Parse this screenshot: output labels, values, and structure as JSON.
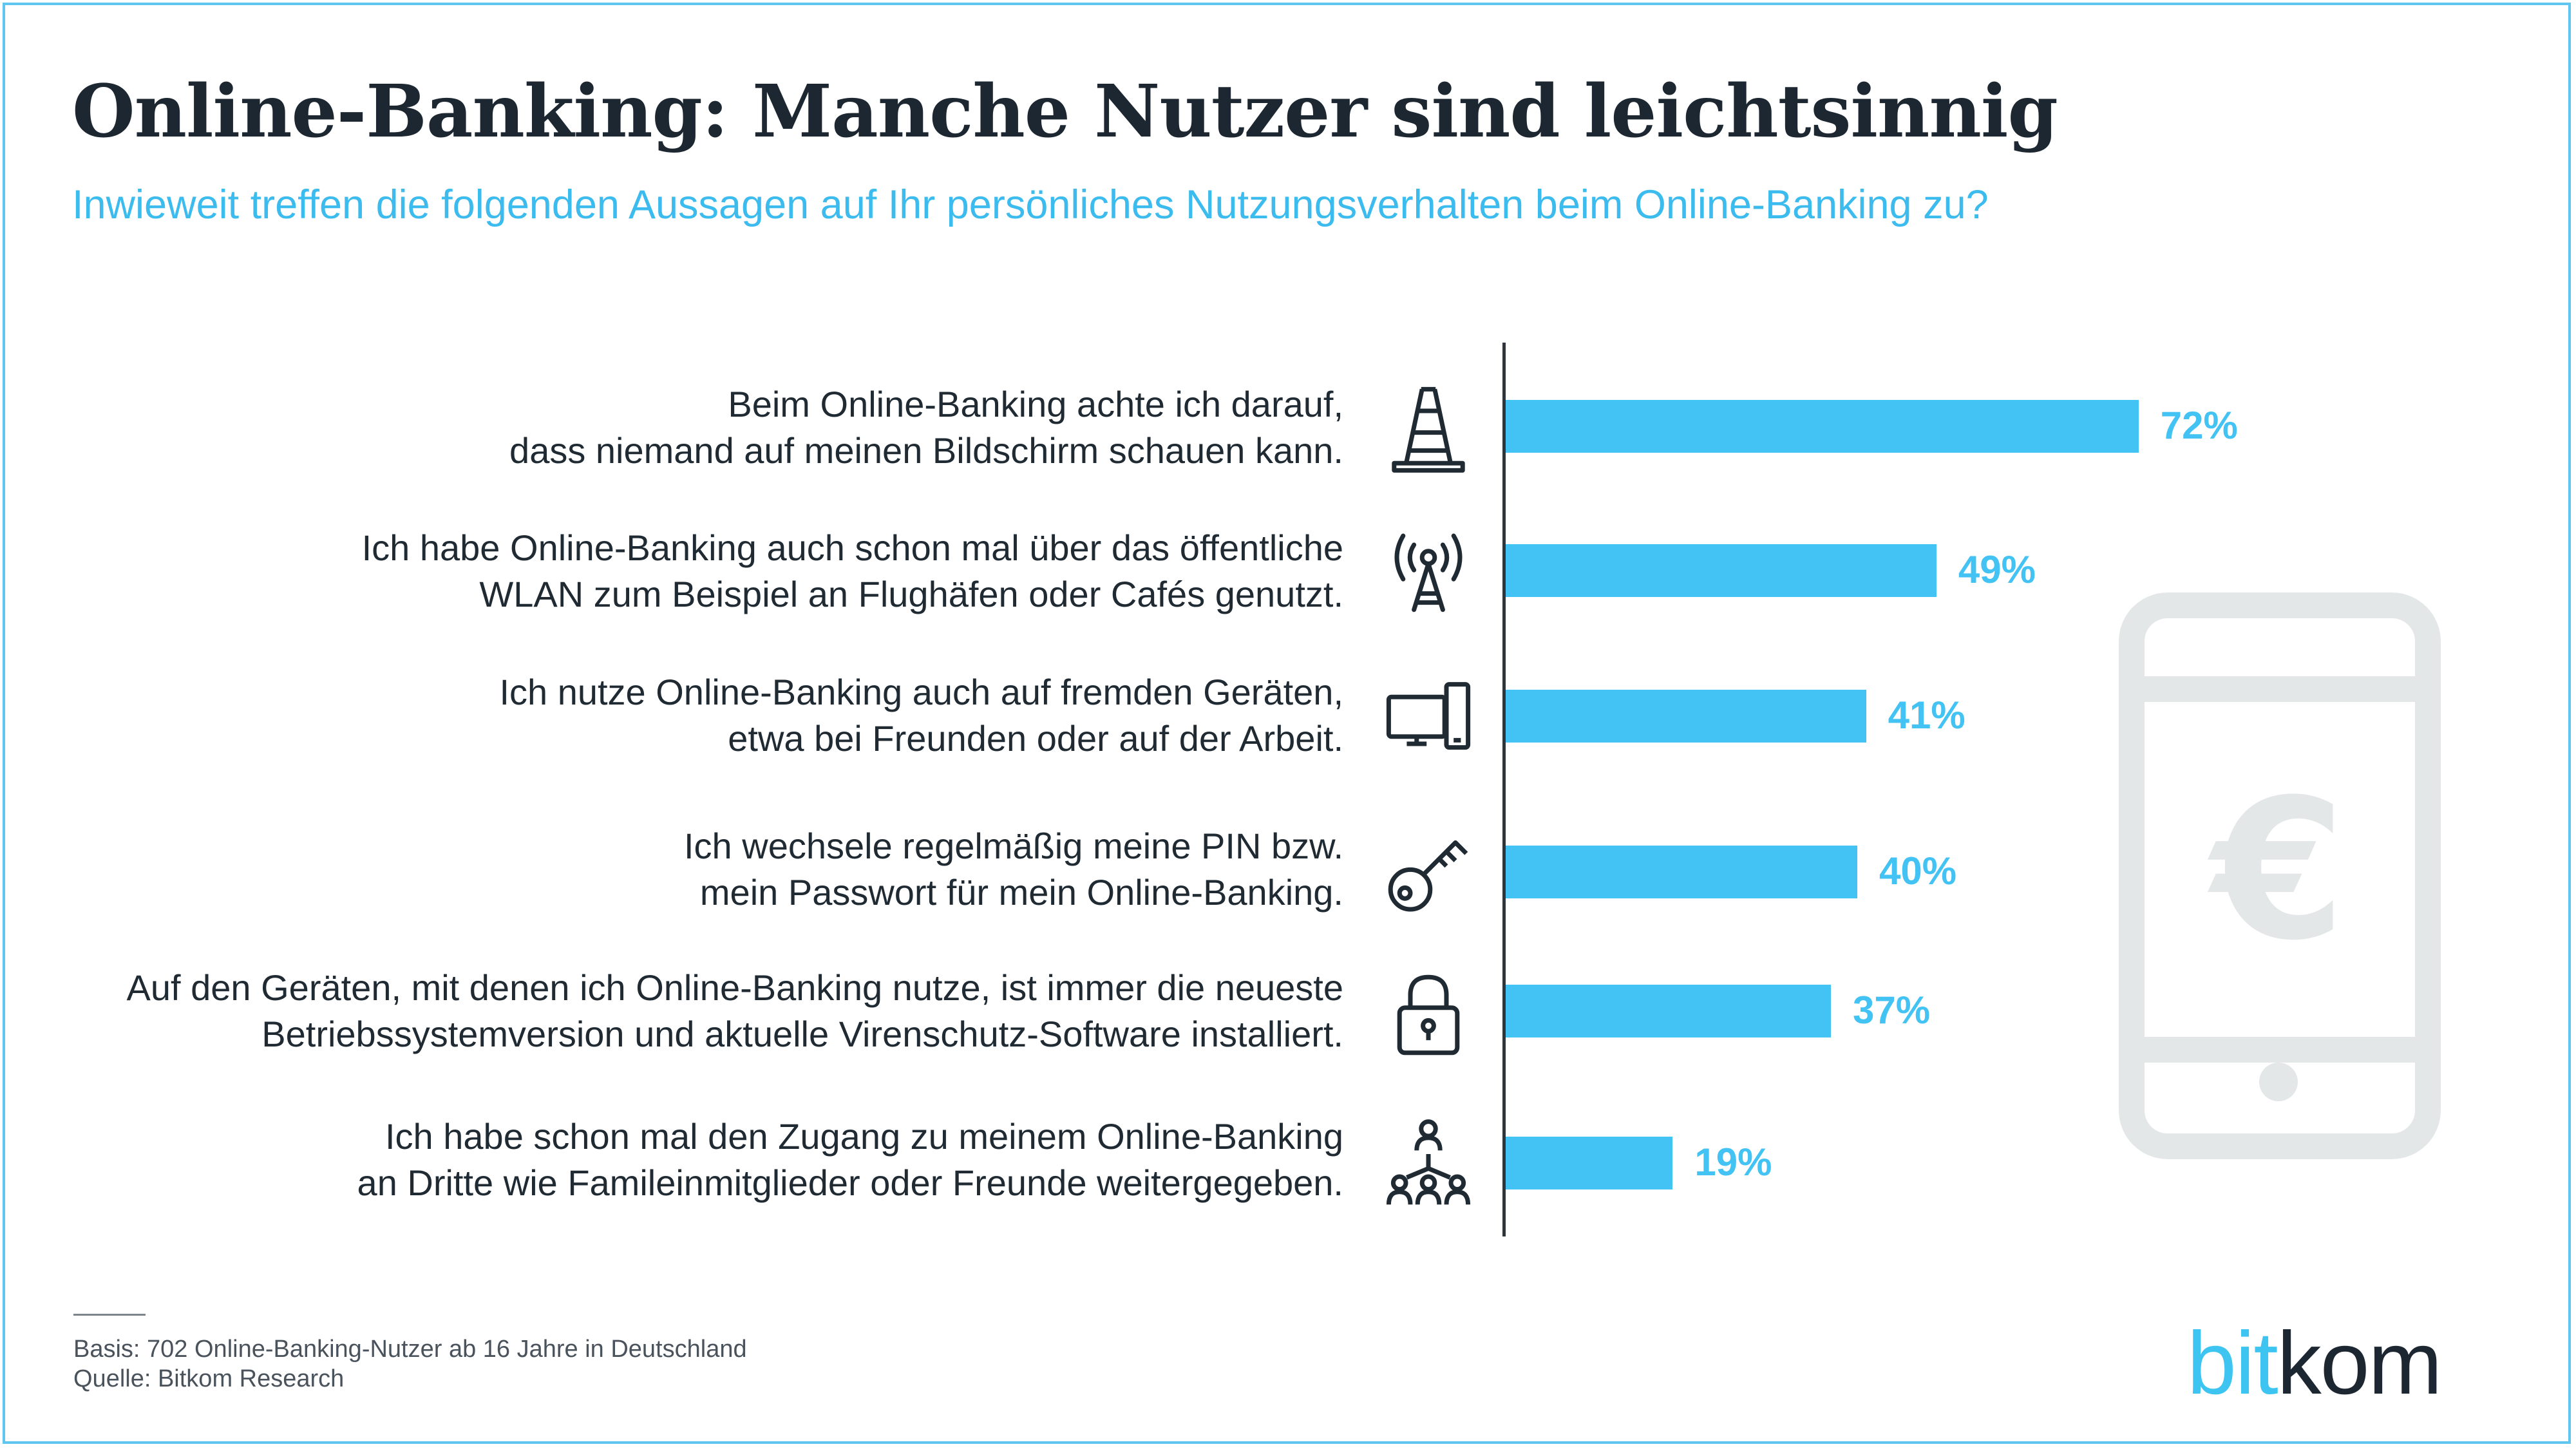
{
  "header": {
    "title": "Online-Banking: Manche Nutzer sind leichtsinnig",
    "subtitle": "Inwieweit treffen die folgenden Aussagen auf Ihr persönliches Nutzungsverhalten beim Online-Banking zu?"
  },
  "chart_data": {
    "type": "bar",
    "orientation": "horizontal",
    "title": "Online-Banking: Manche Nutzer sind leichtsinnig",
    "subtitle": "Inwieweit treffen die folgenden Aussagen auf Ihr persönliches Nutzungsverhalten beim Online-Banking zu?",
    "unit": "%",
    "xlim": [
      0,
      100
    ],
    "grid": false,
    "bar_color": "#43c2f4",
    "categories": [
      {
        "lines": [
          "Beim Online-Banking achte ich darauf,",
          "dass niemand auf meinen Bildschirm schauen kann."
        ],
        "icon": "traffic-cone-icon"
      },
      {
        "lines": [
          "Ich habe Online-Banking auch schon mal über das öffentliche",
          "WLAN zum Beispiel an Flughäfen oder Cafés genutzt."
        ],
        "icon": "antenna-icon"
      },
      {
        "lines": [
          "Ich nutze Online-Banking auch auf fremden Geräten,",
          "etwa bei Freunden oder auf der Arbeit."
        ],
        "icon": "devices-icon"
      },
      {
        "lines": [
          "Ich wechsele regelmäßig meine PIN bzw.",
          "mein Passwort für mein Online-Banking."
        ],
        "icon": "key-icon"
      },
      {
        "lines": [
          "Auf den Geräten, mit denen ich Online-Banking nutze, ist immer die neueste",
          "Betriebssystemversion und aktuelle Virenschutz-Software installiert."
        ],
        "icon": "padlock-icon"
      },
      {
        "lines": [
          "Ich habe schon mal den Zugang zu meinem Online-Banking",
          "an Dritte wie Famileinmitglieder oder Freunde weitergegeben."
        ],
        "icon": "sharing-people-icon"
      }
    ],
    "values": [
      72,
      49,
      41,
      40,
      37,
      19
    ],
    "value_labels": [
      "72%",
      "49%",
      "41%",
      "40%",
      "37%",
      "19%"
    ]
  },
  "decoration": {
    "phone_icon": "smartphone-euro-icon",
    "phone_symbol": "€",
    "colors": {
      "accent": "#43c2f4",
      "title": "#1c2731",
      "phone": "#e3e7e8"
    }
  },
  "footer": {
    "basis": "Basis: 702 Online-Banking-Nutzer ab 16 Jahre in Deutschland",
    "source": "Quelle: Bitkom Research"
  },
  "logo": {
    "part1": "bit",
    "part2": "kom"
  }
}
